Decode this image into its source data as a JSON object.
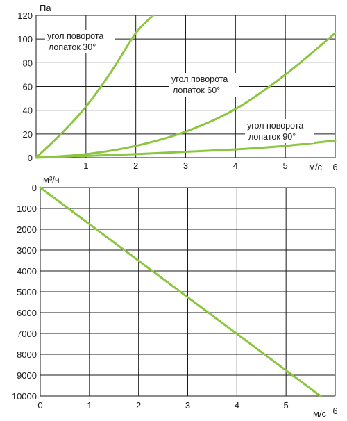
{
  "charts": [
    {
      "type": "line",
      "ylabel": "Па",
      "xlabel": "м/с",
      "xlim": [
        0,
        6
      ],
      "ylim": [
        0,
        120
      ],
      "xticks": [
        1,
        2,
        3,
        4,
        5,
        6
      ],
      "yticks": [
        0,
        20,
        40,
        60,
        80,
        100,
        120
      ],
      "line_color": "#8cc63f",
      "grid": true,
      "series": [
        {
          "name": "угол поворота лопаток 30°",
          "name_lines": [
            "угол поворота",
            "лопаток 30°"
          ],
          "x": [
            0,
            0.5,
            1,
            1.5,
            2,
            2.35
          ],
          "y": [
            0,
            20,
            43,
            72,
            105,
            120
          ]
        },
        {
          "name": "угол поворота лопаток 60°",
          "name_lines": [
            "угол поворота",
            "лопаток 60°"
          ],
          "x": [
            0,
            1,
            2,
            3,
            4,
            5,
            6
          ],
          "y": [
            0,
            3,
            10,
            22,
            41,
            70,
            105
          ]
        },
        {
          "name": "угол поворота лопаток 90°",
          "name_lines": [
            "угол поворота",
            "лопаток 90°"
          ],
          "x": [
            0,
            1,
            2,
            3,
            4,
            5,
            6
          ],
          "y": [
            0,
            1.5,
            3,
            5,
            7,
            10,
            14.5
          ]
        }
      ]
    },
    {
      "type": "line",
      "ylabel": "м³/ч",
      "xlabel": "м/с",
      "xlim": [
        0,
        6
      ],
      "ylim": [
        0,
        10000
      ],
      "y_inverted": true,
      "xticks": [
        0,
        1,
        2,
        3,
        4,
        5,
        6
      ],
      "yticks": [
        0,
        1000,
        2000,
        3000,
        4000,
        5000,
        6000,
        7000,
        8000,
        9000,
        10000
      ],
      "line_color": "#8cc63f",
      "grid": true,
      "series": [
        {
          "x": [
            0,
            5.7
          ],
          "y": [
            0,
            10000
          ]
        }
      ]
    }
  ]
}
